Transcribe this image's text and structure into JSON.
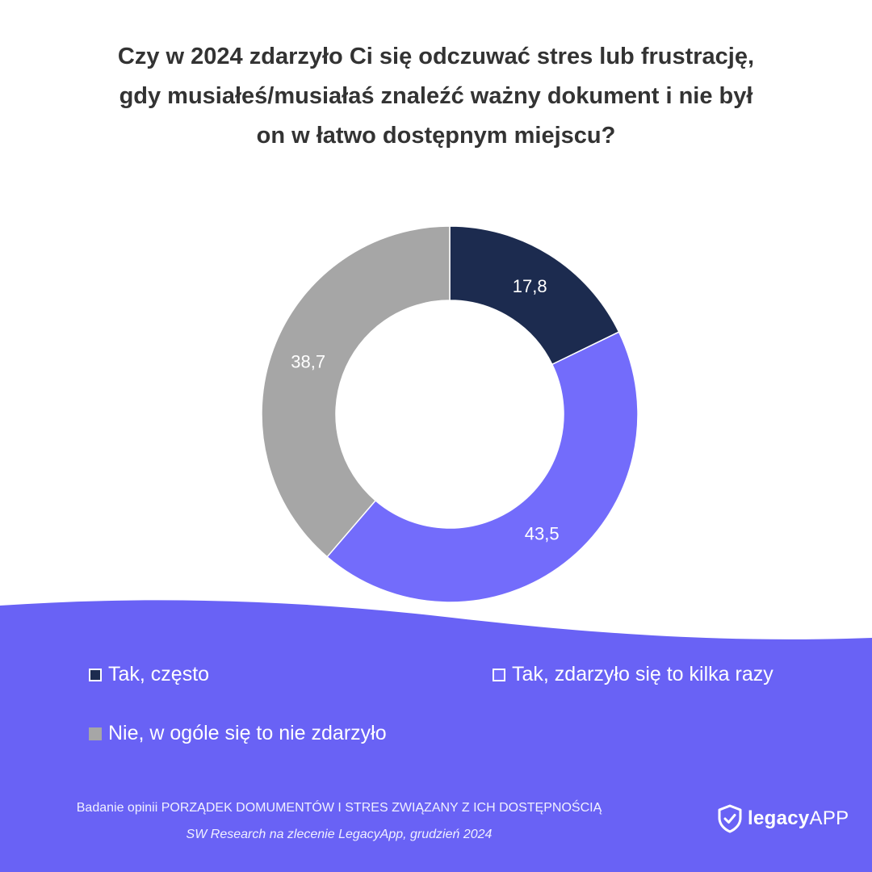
{
  "title": {
    "line1": "Czy w 2024 zdarzyło Ci się odczuwać stres lub frustrację,",
    "line2": "gdy musiałeś/musiałaś znaleźć ważny dokument i nie był",
    "line3": "on w łatwo dostępnym miejscu?"
  },
  "chart_data": {
    "type": "pie",
    "style": "donut",
    "title": "Czy w 2024 zdarzyło Ci się odczuwać stres lub frustrację, gdy musiałeś/musiałaś znaleźć ważny dokument i nie był on w łatwo dostępnym miejscu?",
    "categories": [
      "Tak, często",
      "Tak, zdarzyło się to kilka razy",
      "Nie, w ogóle się to nie zdarzyło"
    ],
    "values": [
      17.8,
      43.5,
      38.7
    ],
    "value_labels": [
      "17,8",
      "43,5",
      "38,7"
    ],
    "colors": [
      "#1c2b4f",
      "#736cfb",
      "#a6a6a6"
    ],
    "legend_placement": "bottom"
  },
  "legend": {
    "items": [
      {
        "label": "Tak, często",
        "swatch": "#1c2b4f",
        "swatch_border": "#ffffff"
      },
      {
        "label": "Tak, zdarzyło się to kilka razy",
        "swatch": "#736cfb",
        "swatch_border": "#ffffff"
      },
      {
        "label": "Nie, w ogóle się to nie zdarzyło",
        "swatch": "#a6a6a6",
        "swatch_border": "#a6a6a6"
      }
    ]
  },
  "footer": {
    "line1": "Badanie opinii PORZĄDEK DOMUMENTÓW I STRES ZWIĄZANY Z ICH DOSTĘPNOŚCIĄ",
    "line2": "SW Research na zlecenie LegacyApp, grudzień 2024"
  },
  "logo": {
    "icon": "shield-check-icon",
    "part1": "legacy",
    "part2": "APP"
  },
  "colors": {
    "background": "#ffffff",
    "wave": "#6962f5",
    "title": "#333333",
    "legend_text": "#ffffff"
  }
}
